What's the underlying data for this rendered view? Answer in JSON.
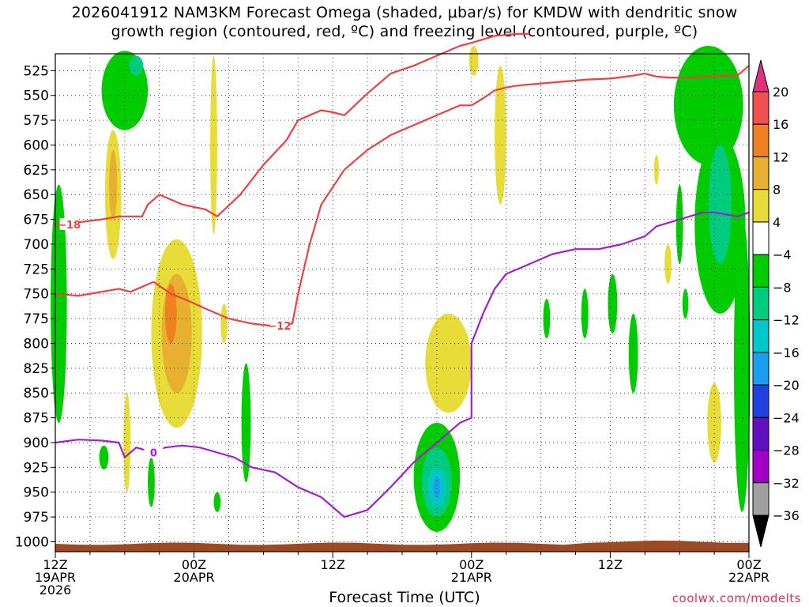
{
  "chart_data": {
    "type": "heatmap",
    "title": "2026041912 NAM3KM Forecast Omega (shaded, μbar/s) for KMDW with dendritic snow\ngrowth region (contoured, red, ºC) and freezing level (contoured, purple, ºC)",
    "xlabel": "Forecast Time (UTC)",
    "credit": "coolwx.com/modelts",
    "x_range_hours": [
      0,
      60
    ],
    "x_ticks": [
      {
        "hour": 0,
        "label": "12Z",
        "sub1": "19APR",
        "sub2": "2026"
      },
      {
        "hour": 12,
        "label": "00Z",
        "sub1": "20APR",
        "sub2": ""
      },
      {
        "hour": 24,
        "label": "12Z",
        "sub1": "",
        "sub2": ""
      },
      {
        "hour": 36,
        "label": "00Z",
        "sub1": "21APR",
        "sub2": ""
      },
      {
        "hour": 48,
        "label": "12Z",
        "sub1": "",
        "sub2": ""
      },
      {
        "hour": 60,
        "label": "00Z",
        "sub1": "22APR",
        "sub2": ""
      }
    ],
    "y_ticks_hpa": [
      525,
      550,
      575,
      600,
      625,
      650,
      675,
      700,
      725,
      750,
      775,
      800,
      825,
      850,
      875,
      900,
      925,
      950,
      975,
      1000
    ],
    "y_range_hpa": [
      508,
      1010
    ],
    "colorbar": {
      "labels": [
        "20",
        "16",
        "12",
        "8",
        "4",
        "−4",
        "−8",
        "−12",
        "−16",
        "−20",
        "−24",
        "−28",
        "−32",
        "−36"
      ],
      "colors": [
        "#e0307a",
        "#f05050",
        "#ee8020",
        "#e8b030",
        "#e8dc38",
        "#ffffff",
        "#00cc00",
        "#00cc80",
        "#00c8c8",
        "#1a9ef0",
        "#2040e0",
        "#6010c0",
        "#a000c8",
        "#a0a0a0",
        "#000000"
      ]
    },
    "omega_cells": [
      {
        "name": "green-left-edge",
        "hour": 0.3,
        "p": 760,
        "dh": 0.7,
        "dp": 120,
        "value": -6
      },
      {
        "name": "green-top-left",
        "hour": 6.0,
        "p": 545,
        "dh": 2.0,
        "dp": 40,
        "value": -6
      },
      {
        "name": "teal-top-left",
        "hour": 7.0,
        "p": 520,
        "dh": 0.6,
        "dp": 10,
        "value": -10
      },
      {
        "name": "yellow-left-column",
        "hour": 5.0,
        "p": 650,
        "dh": 0.7,
        "dp": 65,
        "value": 6
      },
      {
        "name": "orange-left-column",
        "hour": 5.0,
        "p": 640,
        "dh": 0.35,
        "dp": 35,
        "value": 10
      },
      {
        "name": "yellow-main-block",
        "hour": 10.5,
        "p": 790,
        "dh": 2.2,
        "dp": 95,
        "value": 6
      },
      {
        "name": "gold-main-block",
        "hour": 10.5,
        "p": 790,
        "dh": 1.3,
        "dp": 60,
        "value": 9
      },
      {
        "name": "orange-main-block",
        "hour": 10.0,
        "p": 770,
        "dh": 0.5,
        "dp": 30,
        "value": 12
      },
      {
        "name": "yellow-thin-20apr",
        "hour": 13.7,
        "p": 600,
        "dh": 0.3,
        "dp": 90,
        "value": 5
      },
      {
        "name": "yellow-thin-low",
        "hour": 14.6,
        "p": 780,
        "dh": 0.3,
        "dp": 20,
        "value": 5
      },
      {
        "name": "green-20apr-column",
        "hour": 16.5,
        "p": 880,
        "dh": 0.4,
        "dp": 60,
        "value": -6
      },
      {
        "name": "green-small-left",
        "hour": 4.2,
        "p": 915,
        "dh": 0.4,
        "dp": 12,
        "value": -6
      },
      {
        "name": "yellow-small-left",
        "hour": 6.2,
        "p": 900,
        "dh": 0.3,
        "dp": 50,
        "value": 5
      },
      {
        "name": "green-small-2",
        "hour": 8.3,
        "p": 940,
        "dh": 0.3,
        "dp": 25,
        "value": -6
      },
      {
        "name": "green-small-3",
        "hour": 14.0,
        "p": 960,
        "dh": 0.3,
        "dp": 10,
        "value": -6
      },
      {
        "name": "yellow-21apr-block",
        "hour": 34.0,
        "p": 820,
        "dh": 2.0,
        "dp": 50,
        "value": 5
      },
      {
        "name": "green-21apr-cell",
        "hour": 33.0,
        "p": 935,
        "dh": 2.0,
        "dp": 55,
        "value": -6
      },
      {
        "name": "teal-21apr-cell",
        "hour": 33.0,
        "p": 940,
        "dh": 1.3,
        "dp": 35,
        "value": -10
      },
      {
        "name": "cyan-21apr-cell",
        "hour": 33.0,
        "p": 945,
        "dh": 0.8,
        "dp": 20,
        "value": -14
      },
      {
        "name": "blue-21apr-cell",
        "hour": 33.0,
        "p": 945,
        "dh": 0.3,
        "dp": 10,
        "value": -18
      },
      {
        "name": "yellow-21apr-top",
        "hour": 36.2,
        "p": 515,
        "dh": 0.4,
        "dp": 15,
        "value": 5
      },
      {
        "name": "yellow-21apr-column",
        "hour": 38.5,
        "p": 590,
        "dh": 0.5,
        "dp": 70,
        "value": 5
      },
      {
        "name": "green-right-top",
        "hour": 56.5,
        "p": 560,
        "dh": 3.0,
        "dp": 60,
        "value": -6
      },
      {
        "name": "green-right-column",
        "hour": 57.5,
        "p": 680,
        "dh": 2.2,
        "dp": 90,
        "value": -6
      },
      {
        "name": "teal-right-column",
        "hour": 57.5,
        "p": 660,
        "dh": 1.0,
        "dp": 60,
        "value": -10
      },
      {
        "name": "green-right-edge-low",
        "hour": 59.4,
        "p": 820,
        "dh": 0.7,
        "dp": 150,
        "value": -6
      },
      {
        "name": "green-small-r1",
        "hour": 42.5,
        "p": 775,
        "dh": 0.3,
        "dp": 20,
        "value": -6
      },
      {
        "name": "green-small-r2",
        "hour": 45.8,
        "p": 770,
        "dh": 0.3,
        "dp": 25,
        "value": -6
      },
      {
        "name": "green-small-r3",
        "hour": 48.2,
        "p": 760,
        "dh": 0.4,
        "dp": 30,
        "value": -6
      },
      {
        "name": "green-small-r4",
        "hour": 50.0,
        "p": 810,
        "dh": 0.4,
        "dp": 40,
        "value": -6
      },
      {
        "name": "green-small-r5",
        "hour": 54.0,
        "p": 680,
        "dh": 0.3,
        "dp": 40,
        "value": -6
      },
      {
        "name": "yellow-small-r1",
        "hour": 53.0,
        "p": 720,
        "dh": 0.3,
        "dp": 20,
        "value": 5
      },
      {
        "name": "yellow-small-r2",
        "hour": 57.0,
        "p": 880,
        "dh": 0.6,
        "dp": 40,
        "value": 5
      },
      {
        "name": "yellow-small-r3",
        "hour": 52.0,
        "p": 625,
        "dh": 0.2,
        "dp": 15,
        "value": 5
      },
      {
        "name": "green-small-r6",
        "hour": 54.5,
        "p": 760,
        "dh": 0.25,
        "dp": 15,
        "value": -6
      }
    ],
    "contours": [
      {
        "name": "dendritic-minus-12",
        "level_label": "−12",
        "color": "#f04040",
        "points": [
          [
            0,
            750
          ],
          [
            2,
            752
          ],
          [
            4,
            748
          ],
          [
            5.5,
            745
          ],
          [
            6.5,
            748
          ],
          [
            8.5,
            738
          ],
          [
            10,
            750
          ],
          [
            11.5,
            757
          ],
          [
            13,
            765
          ],
          [
            15,
            775
          ],
          [
            17,
            780
          ],
          [
            18.5,
            782
          ],
          [
            20.5,
            780
          ],
          [
            21,
            750
          ],
          [
            22,
            700
          ],
          [
            23,
            660
          ],
          [
            25,
            625
          ],
          [
            27,
            605
          ],
          [
            29,
            590
          ],
          [
            31,
            580
          ],
          [
            33,
            570
          ],
          [
            35,
            560
          ],
          [
            36,
            560
          ],
          [
            37,
            553
          ],
          [
            38,
            545
          ],
          [
            39,
            542
          ],
          [
            40,
            540
          ],
          [
            42,
            538
          ],
          [
            44,
            536
          ],
          [
            46,
            534
          ],
          [
            48,
            533
          ],
          [
            50,
            530
          ],
          [
            51,
            528
          ],
          [
            52,
            531
          ],
          [
            53,
            532
          ],
          [
            55,
            532
          ],
          [
            57,
            530
          ],
          [
            59,
            530
          ],
          [
            60,
            520
          ]
        ],
        "label_point": [
          19.4,
          782
        ]
      },
      {
        "name": "dendritic-minus-18",
        "level_label": "−18",
        "color": "#f04040",
        "points": [
          [
            0,
            680
          ],
          [
            2,
            678
          ],
          [
            4,
            675
          ],
          [
            5.5,
            672
          ],
          [
            7.5,
            672
          ],
          [
            8,
            660
          ],
          [
            9,
            650
          ],
          [
            11,
            660
          ],
          [
            13,
            665
          ],
          [
            14,
            672
          ],
          [
            16,
            650
          ],
          [
            18,
            620
          ],
          [
            20,
            595
          ],
          [
            21,
            575
          ],
          [
            23,
            565
          ],
          [
            24,
            567
          ],
          [
            25,
            570
          ],
          [
            27,
            548
          ],
          [
            29,
            528
          ],
          [
            31,
            520
          ],
          [
            33,
            510
          ],
          [
            35,
            500
          ],
          [
            36,
            497
          ],
          [
            38,
            490
          ],
          [
            40,
            488
          ],
          [
            41,
            488
          ]
        ],
        "label_point": [
          1.2,
          680
        ]
      },
      {
        "name": "freezing-level-zero",
        "level_label": "0",
        "color": "#a020d0",
        "points": [
          [
            0,
            900
          ],
          [
            2,
            897
          ],
          [
            4,
            898
          ],
          [
            5.5,
            900
          ],
          [
            6,
            915
          ],
          [
            7,
            905
          ],
          [
            8.5,
            910
          ],
          [
            9.5,
            905
          ],
          [
            11,
            903
          ],
          [
            12.5,
            905
          ],
          [
            14,
            910
          ],
          [
            15.5,
            915
          ],
          [
            17,
            925
          ],
          [
            19,
            930
          ],
          [
            21,
            945
          ],
          [
            23,
            955
          ],
          [
            25,
            975
          ],
          [
            27,
            968
          ],
          [
            29,
            945
          ],
          [
            31,
            920
          ],
          [
            33,
            900
          ],
          [
            35,
            880
          ],
          [
            36,
            875
          ],
          [
            36,
            850
          ],
          [
            36,
            800
          ],
          [
            37,
            770
          ],
          [
            38,
            745
          ],
          [
            39,
            730
          ],
          [
            41,
            720
          ],
          [
            43,
            710
          ],
          [
            45,
            705
          ],
          [
            47,
            705
          ],
          [
            49,
            700
          ],
          [
            51,
            692
          ],
          [
            52,
            682
          ],
          [
            54,
            675
          ],
          [
            56,
            668
          ],
          [
            57,
            668
          ],
          [
            58,
            670
          ],
          [
            59,
            672
          ],
          [
            60,
            668
          ]
        ],
        "label_point": [
          8.5,
          910
        ]
      }
    ]
  }
}
